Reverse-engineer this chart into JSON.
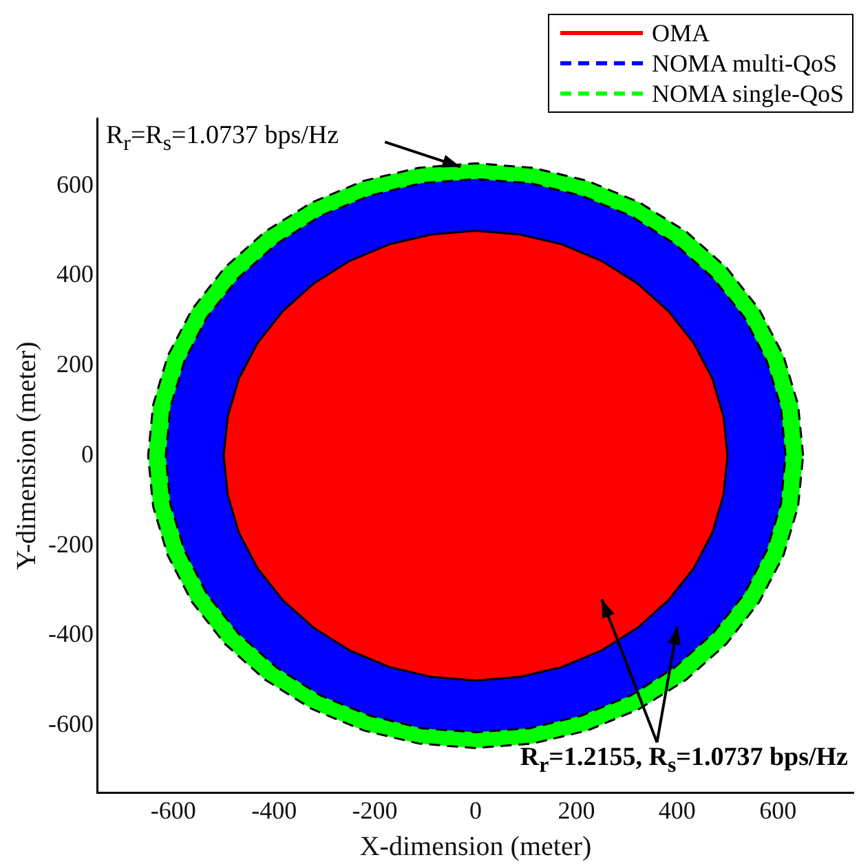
{
  "chart_data": {
    "type": "area",
    "xlabel": "X-dimension (meter)",
    "ylabel": "Y-dimension (meter)",
    "xlim": [
      -750,
      750
    ],
    "xticks": [
      -600,
      -400,
      -200,
      0,
      200,
      400,
      600
    ],
    "ylim": [
      -750,
      750
    ],
    "yticks": [
      -600,
      -400,
      -200,
      0,
      200,
      400,
      600
    ],
    "legend": "top right",
    "grid": false,
    "annotations": [
      "R$_{r}$=R$_{s}$=1.0737 bps/Hz",
      "R$_{r}$=1.2155, R$_{s}$=1.0737 bps/Hz"
    ],
    "series": [
      {
        "name": "OMA",
        "color": "#ff0000",
        "line_style": "solid",
        "x": [
          500,
          492,
          470,
          433,
          383,
          321,
          250,
          171,
          87,
          0,
          -87,
          -171,
          -250,
          -321,
          -383,
          -433,
          -470,
          -492,
          -500,
          -492,
          -470,
          -433,
          -383,
          -321,
          -250,
          -171,
          -87,
          0,
          87,
          171,
          250,
          321,
          383,
          433,
          470,
          492,
          500
        ],
        "values": [
          0,
          87,
          171,
          250,
          321,
          383,
          433,
          470,
          492,
          500,
          492,
          470,
          433,
          383,
          321,
          250,
          171,
          87,
          0,
          -87,
          -171,
          -250,
          -321,
          -383,
          -433,
          -470,
          -492,
          -500,
          -492,
          -470,
          -433,
          -383,
          -321,
          -250,
          -171,
          -87,
          0
        ]
      },
      {
        "name": "NOMA multi-QoS",
        "color": "#0000ff",
        "line_style": "dashed",
        "x": [
          615,
          606,
          578,
          533,
          471,
          395,
          308,
          210,
          107,
          0,
          -107,
          -210,
          -308,
          -395,
          -471,
          -533,
          -578,
          -606,
          -615,
          -606,
          -578,
          -533,
          -471,
          -395,
          -308,
          -210,
          -107,
          0,
          107,
          210,
          308,
          395,
          471,
          533,
          578,
          606,
          615
        ],
        "values": [
          0,
          107,
          210,
          308,
          395,
          471,
          533,
          578,
          606,
          615,
          606,
          578,
          533,
          471,
          395,
          308,
          210,
          107,
          0,
          -107,
          -210,
          -308,
          -395,
          -471,
          -533,
          -578,
          -606,
          -615,
          -606,
          -578,
          -533,
          -471,
          -395,
          -308,
          -210,
          -107,
          0
        ]
      },
      {
        "name": "NOMA single-QoS",
        "color": "#00ff00",
        "line_style": "dashed",
        "x": [
          650,
          640,
          611,
          563,
          498,
          418,
          325,
          222,
          113,
          0,
          -113,
          -222,
          -325,
          -418,
          -498,
          -563,
          -611,
          -640,
          -650,
          -640,
          -611,
          -563,
          -498,
          -418,
          -325,
          -222,
          -113,
          0,
          113,
          222,
          325,
          418,
          498,
          563,
          611,
          640,
          650
        ],
        "values": [
          0,
          113,
          222,
          325,
          418,
          498,
          563,
          611,
          640,
          650,
          640,
          611,
          563,
          498,
          418,
          325,
          222,
          113,
          0,
          -113,
          -222,
          -325,
          -418,
          -498,
          -563,
          -611,
          -640,
          -650,
          -640,
          -611,
          -563,
          -498,
          -418,
          -325,
          -222,
          -113,
          0
        ]
      }
    ]
  }
}
